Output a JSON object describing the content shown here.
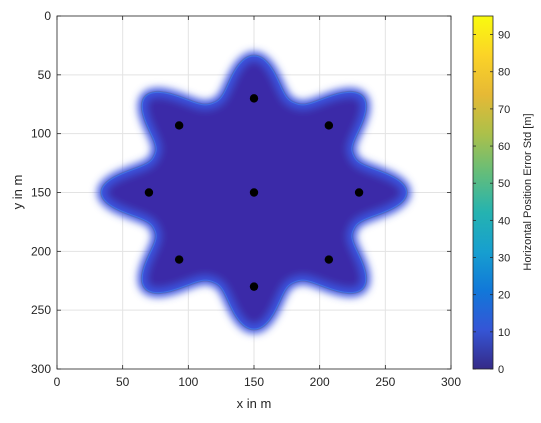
{
  "chart_data": {
    "type": "heatmap",
    "xlabel": "x in m",
    "ylabel": "y in m",
    "xlim": [
      0,
      300
    ],
    "ylim": [
      0,
      300
    ],
    "y_axis_reversed": true,
    "x_ticks": [
      0,
      50,
      100,
      150,
      200,
      250,
      300
    ],
    "y_ticks": [
      0,
      50,
      100,
      150,
      200,
      250,
      300
    ],
    "grid": true,
    "colorbar": {
      "label": "Horizontal Position Error Std [m]",
      "range": [
        0,
        95
      ],
      "ticks": [
        0,
        10,
        20,
        30,
        40,
        50,
        60,
        70,
        80,
        90
      ],
      "colormap": "parula"
    },
    "colors": {
      "interior": "#3b2aa8",
      "halo": "#3e55e0",
      "edge": "#9fcb3a",
      "background": "#ffffff",
      "anchor": "#000000"
    },
    "region": {
      "shape": "eight-pointed star",
      "center": [
        150,
        150
      ],
      "outer_radius": 116,
      "inner_radius": 82,
      "interior_error": 2
    },
    "anchors": {
      "x": [
        150,
        93,
        207,
        70,
        150,
        230,
        93,
        207,
        150
      ],
      "y": [
        70,
        93,
        93,
        150,
        150,
        150,
        207,
        207,
        230
      ]
    }
  }
}
